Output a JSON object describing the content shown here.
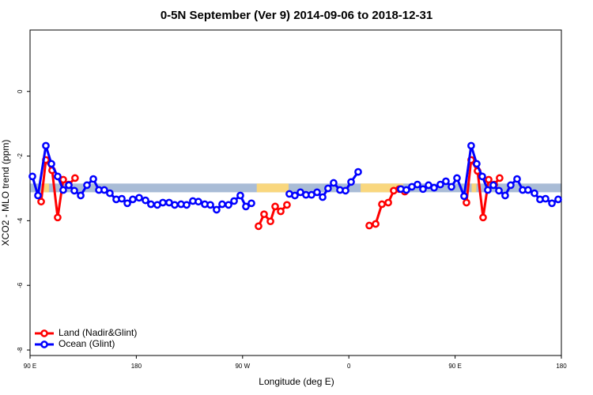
{
  "chart_data": {
    "type": "line",
    "title": "0-5N September (Ver 9)   2014-09-06 to 2018-12-31",
    "x_label": "Longitude (deg E)",
    "y_label": "XCO2 - MLO trend (ppm)",
    "xlim": [
      90,
      540
    ],
    "ylim": [
      -8.17,
      1.9
    ],
    "xticks": [
      {
        "value": 90,
        "label": "90 E"
      },
      180,
      {
        "value": 270,
        "label": "90 W"
      },
      {
        "value": 360,
        "label": "0"
      },
      {
        "value": 450,
        "label": "90 E"
      },
      180
    ],
    "yticks": [
      0,
      -2,
      -4,
      -6,
      -8
    ],
    "legend": "bottom-left",
    "band": {
      "ylim": [
        -2.85,
        -3.12
      ],
      "segments": [
        {
          "from": 90,
          "to": 540,
          "color": "#a9bcd6"
        },
        {
          "from": 101,
          "to": 106,
          "color": "#f9d77e"
        },
        {
          "from": 282,
          "to": 309,
          "color": "#f9d77e"
        },
        {
          "from": 370,
          "to": 406,
          "color": "#f9d77e"
        },
        {
          "from": 464,
          "to": 468,
          "color": "#f9d77e"
        }
      ]
    },
    "series": [
      {
        "name": "Land (Nadir&Glint)",
        "color": "#ff0000",
        "x": [
          99.4,
          103.4,
          108.7,
          113.4,
          118.1,
          122.8,
          128.1,
          null,
          283.5,
          288.2,
          293.6,
          297.6,
          302.3,
          307.6,
          null,
          377.3,
          382.7,
          388.0,
          393.4,
          398.0,
          402.7,
          407.4,
          null,
          459.6,
          463.6,
          469.0,
          473.7,
          478.4,
          483.1,
          487.7
        ],
        "values": [
          -3.41,
          -2.12,
          -2.44,
          -3.9,
          -2.73,
          -2.88,
          -2.68,
          null,
          -4.17,
          -3.8,
          -4.02,
          -3.56,
          -3.71,
          -3.51,
          null,
          -4.15,
          -4.1,
          -3.49,
          -3.44,
          -3.07,
          -3.02,
          -3.1,
          null,
          -3.44,
          -2.12,
          -2.46,
          -3.9,
          -2.73,
          -2.88,
          -2.68
        ]
      },
      {
        "name": "Ocean (Glint)",
        "color": "#0000ff",
        "x": [
          92.0,
          96.7,
          103.4,
          108.1,
          113.4,
          118.1,
          122.8,
          127.5,
          132.9,
          138.2,
          143.6,
          148.3,
          152.9,
          157.6,
          163.0,
          167.7,
          172.4,
          177.0,
          182.4,
          187.8,
          192.4,
          197.8,
          202.5,
          207.8,
          212.5,
          217.9,
          222.6,
          227.9,
          232.6,
          238.0,
          242.7,
          248.0,
          252.7,
          258.1,
          262.8,
          268.1,
          272.8,
          277.5,
          null,
          309.6,
          314.3,
          319.0,
          323.7,
          328.4,
          333.1,
          337.8,
          342.4,
          347.1,
          352.5,
          357.2,
          361.9,
          367.9,
          null,
          404.0,
          408.7,
          413.4,
          418.1,
          422.8,
          427.5,
          432.2,
          437.5,
          442.2,
          446.9,
          451.6,
          457.6,
          463.6,
          468.3,
          473.0,
          477.7,
          482.4,
          487.1,
          492.4,
          497.1,
          502.5,
          507.2,
          511.8,
          517.2,
          521.9,
          526.6,
          532.0,
          537.3
        ],
        "values": [
          -2.63,
          -3.22,
          -1.68,
          -2.24,
          -2.63,
          -3.05,
          -2.9,
          -3.07,
          -3.22,
          -2.9,
          -2.71,
          -3.05,
          -3.05,
          -3.15,
          -3.34,
          -3.32,
          -3.46,
          -3.34,
          -3.29,
          -3.37,
          -3.49,
          -3.51,
          -3.44,
          -3.44,
          -3.51,
          -3.49,
          -3.51,
          -3.39,
          -3.41,
          -3.49,
          -3.51,
          -3.66,
          -3.49,
          -3.51,
          -3.39,
          -3.22,
          -3.56,
          -3.46,
          null,
          -3.17,
          -3.22,
          -3.12,
          -3.2,
          -3.2,
          -3.12,
          -3.27,
          -3.0,
          -2.83,
          -3.05,
          -3.07,
          -2.8,
          -2.49,
          null,
          -3.02,
          -3.05,
          -2.95,
          -2.88,
          -3.02,
          -2.9,
          -2.98,
          -2.88,
          -2.78,
          -2.95,
          -2.68,
          -3.24,
          -1.68,
          -2.24,
          -2.63,
          -3.05,
          -2.9,
          -3.07,
          -3.22,
          -2.9,
          -2.71,
          -3.05,
          -3.05,
          -3.15,
          -3.34,
          -3.32,
          -3.46,
          -3.34
        ]
      }
    ]
  }
}
